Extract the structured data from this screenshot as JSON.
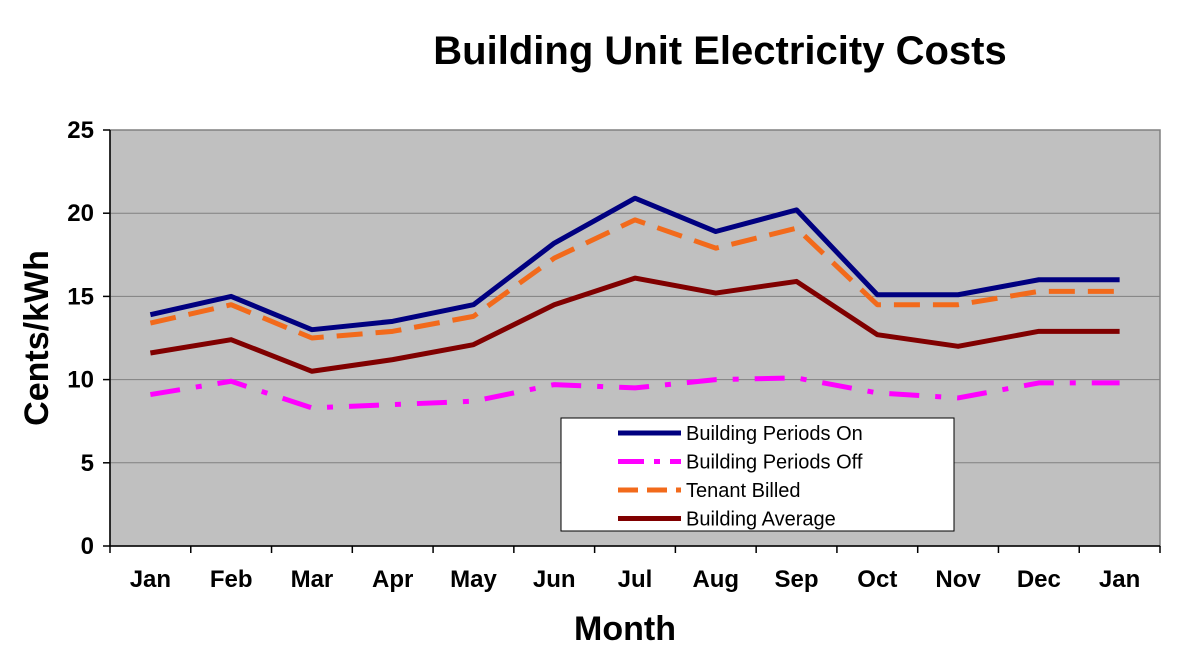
{
  "chart_data": {
    "type": "line",
    "title": "Building Unit Electricity Costs",
    "xlabel": "Month",
    "ylabel": "Cents/kWh",
    "categories": [
      "Jan",
      "Feb",
      "Mar",
      "Apr",
      "May",
      "Jun",
      "Jul",
      "Aug",
      "Sep",
      "Oct",
      "Nov",
      "Dec",
      "Jan"
    ],
    "ylim": [
      0,
      25
    ],
    "yticks": [
      "0",
      "5",
      "10",
      "15",
      "20",
      "25"
    ],
    "grid": "horizontal",
    "legend_position": "bottom-right",
    "plot_background": "#c0c0c0",
    "series": [
      {
        "name": "Building Periods On",
        "color": "#000080",
        "style": "solid",
        "values": [
          13.9,
          15.0,
          13.0,
          13.5,
          14.5,
          18.2,
          20.9,
          18.9,
          20.2,
          15.1,
          15.1,
          16.0,
          16.0
        ]
      },
      {
        "name": "Building Periods Off",
        "color": "#ff00ff",
        "style": "dash-dot",
        "values": [
          9.1,
          9.9,
          8.3,
          8.5,
          8.7,
          9.7,
          9.5,
          10.0,
          10.1,
          9.2,
          8.9,
          9.8,
          9.8
        ]
      },
      {
        "name": "Tenant Billed",
        "color": "#f26a1b",
        "style": "dashed",
        "values": [
          13.4,
          14.5,
          12.5,
          12.9,
          13.8,
          17.3,
          19.6,
          17.9,
          19.1,
          14.5,
          14.5,
          15.3,
          15.3
        ]
      },
      {
        "name": "Building Average",
        "color": "#800000",
        "style": "solid",
        "values": [
          11.6,
          12.4,
          10.5,
          11.2,
          12.1,
          14.5,
          16.1,
          15.2,
          15.9,
          12.7,
          12.0,
          12.9,
          12.9
        ]
      }
    ]
  }
}
